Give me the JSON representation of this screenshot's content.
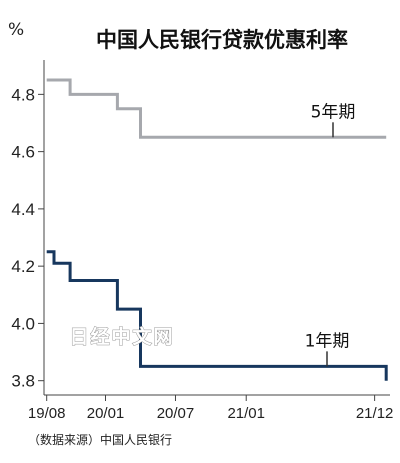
{
  "source": "（数据来源）中国人民银行",
  "watermark": "日经中文网",
  "chart_data": {
    "type": "line",
    "title": "中国人民银行贷款优惠利率",
    "unit": "%",
    "step": true,
    "ylim": [
      3.75,
      4.92
    ],
    "yticks": [
      3.8,
      4.0,
      4.2,
      4.4,
      4.6,
      4.8
    ],
    "ytick_labels": [
      "3.8",
      "4.0",
      "4.2",
      "4.4",
      "4.6",
      "4.8"
    ],
    "xlim": [
      "2019-07-25",
      "2022-01-10"
    ],
    "xticks": [
      "2019-08",
      "2020-01",
      "2020-07",
      "2021-01",
      "2021-12"
    ],
    "xtick_labels": [
      "19/08",
      "20/01",
      "20/07",
      "21/01",
      "21/12"
    ],
    "grid": false,
    "series": [
      {
        "name": "5年期",
        "color": "#a6a8ad",
        "points": [
          [
            "2019-08-01",
            4.85
          ],
          [
            "2019-10-01",
            4.8
          ],
          [
            "2020-02-01",
            4.75
          ],
          [
            "2020-04-01",
            4.65
          ],
          [
            "2021-12-31",
            4.65
          ]
        ]
      },
      {
        "name": "1年期",
        "color": "#17375e",
        "points": [
          [
            "2019-08-01",
            4.25
          ],
          [
            "2019-08-20",
            4.21
          ],
          [
            "2019-10-01",
            4.15
          ],
          [
            "2020-01-01",
            4.15
          ],
          [
            "2020-02-01",
            4.05
          ],
          [
            "2020-04-01",
            3.85
          ],
          [
            "2021-12-01",
            3.85
          ],
          [
            "2021-12-31",
            3.8
          ]
        ]
      }
    ]
  }
}
